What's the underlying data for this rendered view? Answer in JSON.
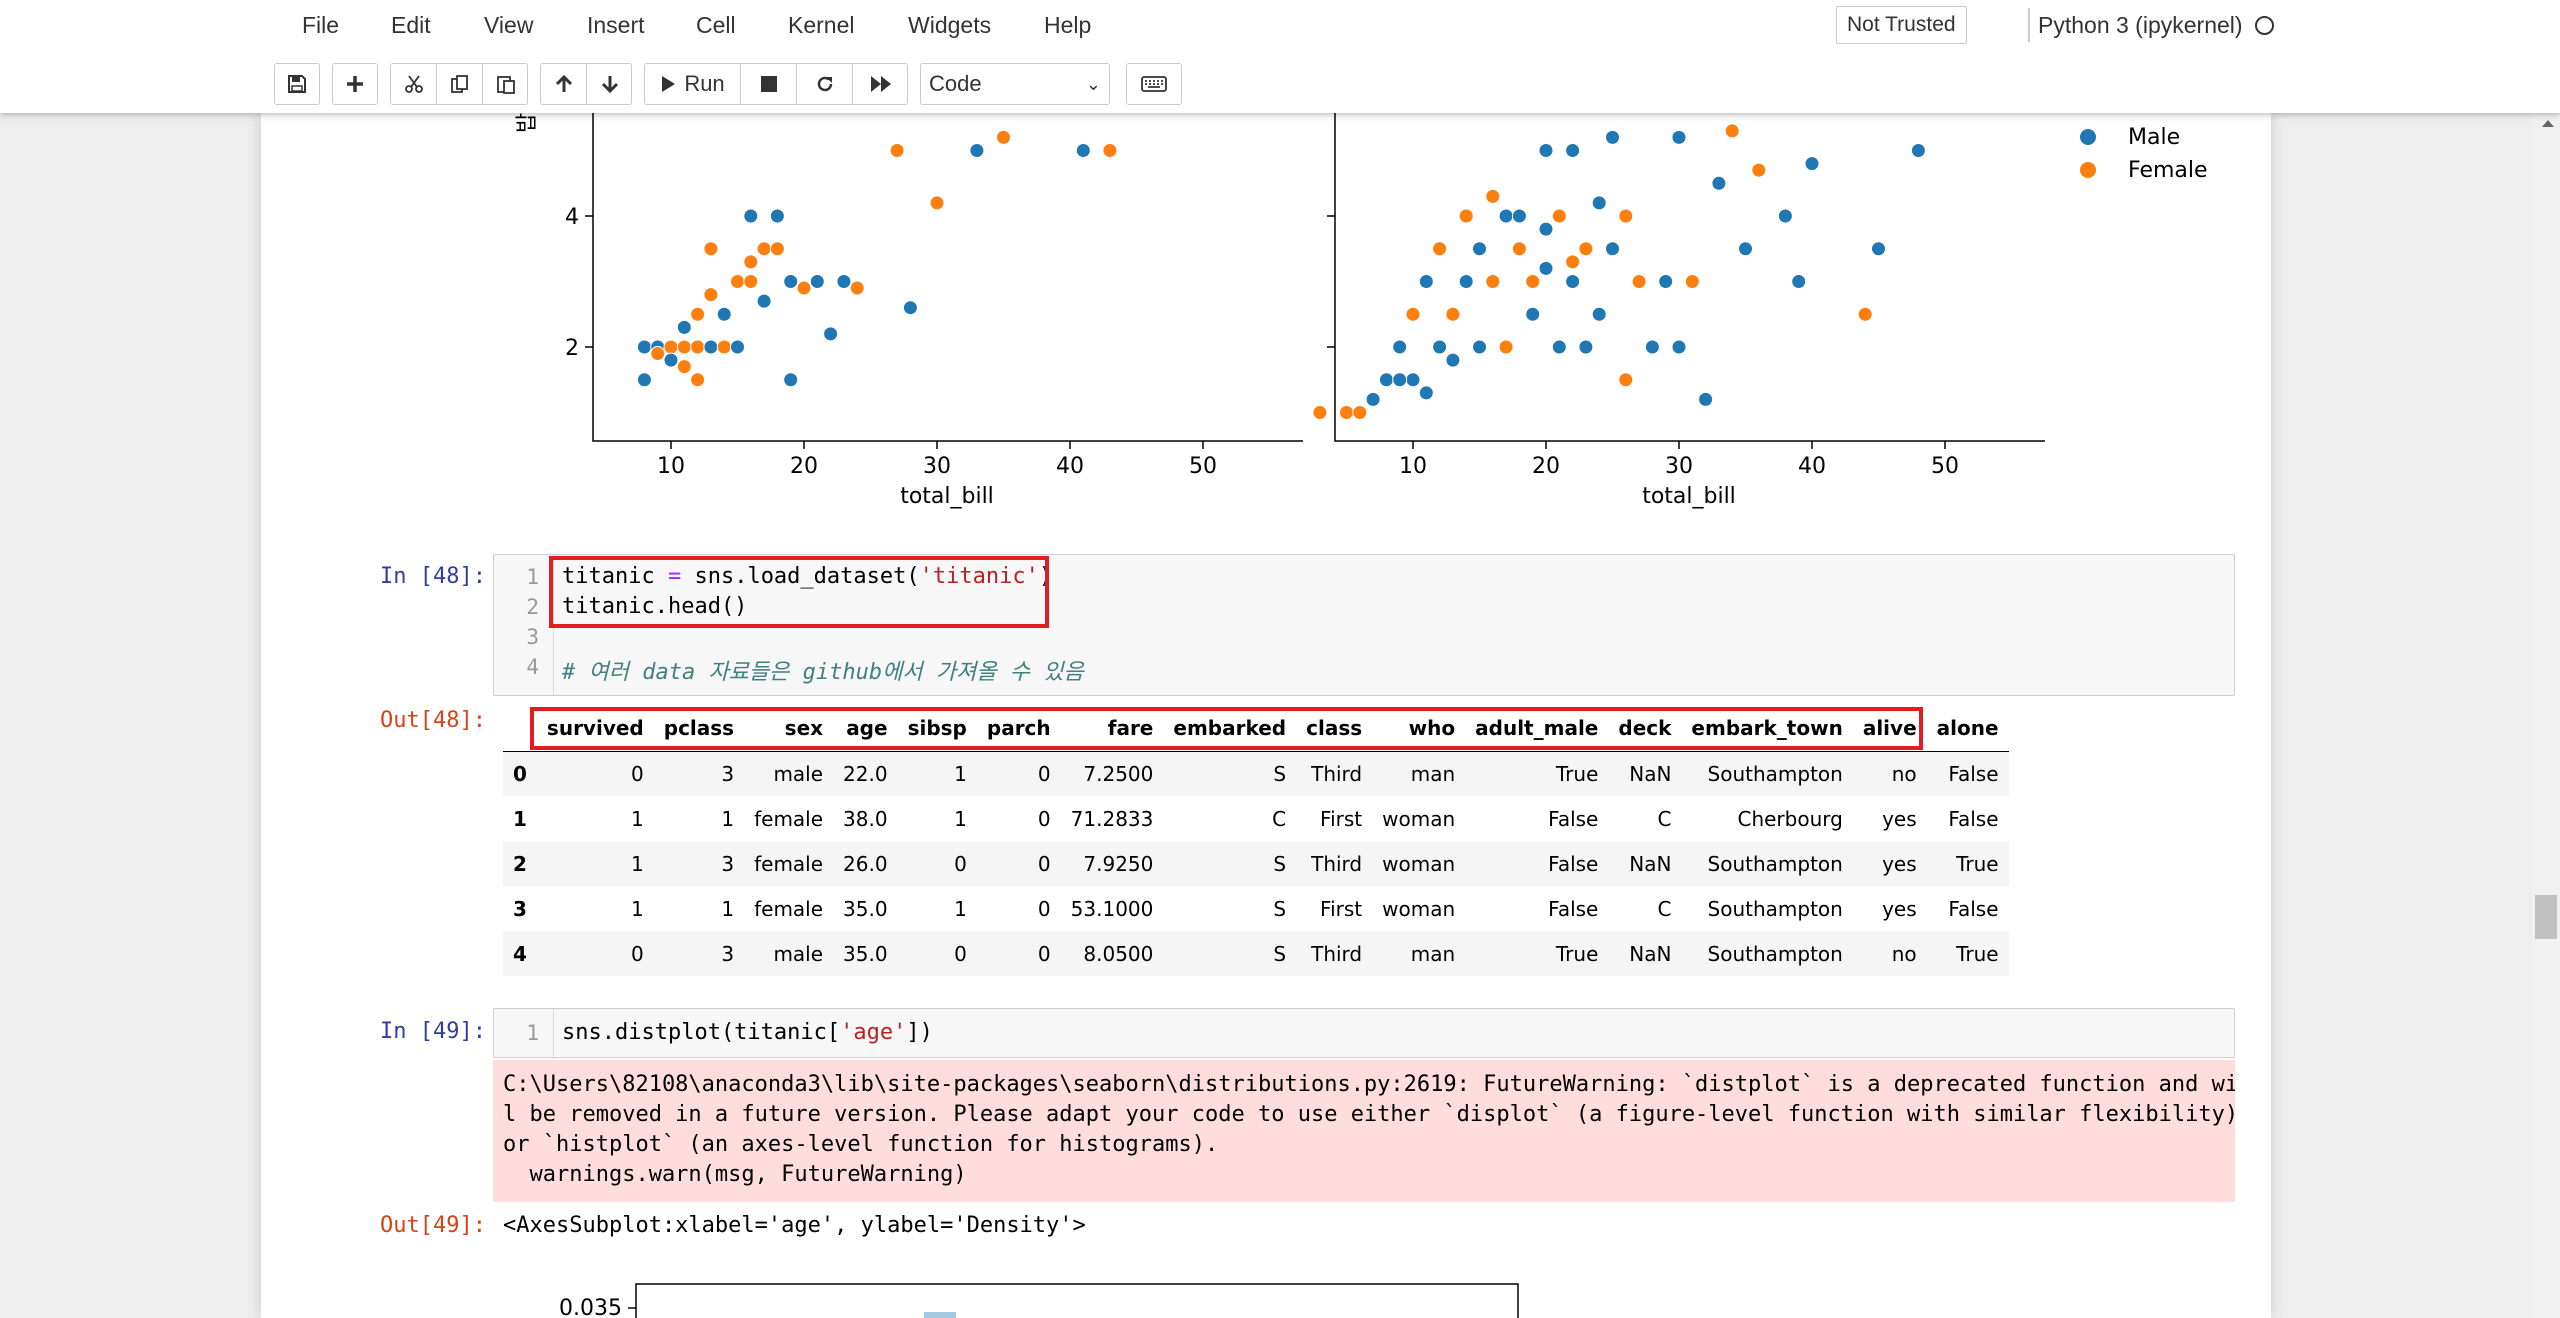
{
  "menu": [
    "File",
    "Edit",
    "View",
    "Insert",
    "Cell",
    "Kernel",
    "Widgets",
    "Help"
  ],
  "trust_label": "Not Trusted",
  "kernel_label": "Python 3 (ipykernel)",
  "toolbar": {
    "run_label": "Run",
    "cell_type": "Code",
    "icons": [
      "save-icon",
      "plus-icon",
      "cut-icon",
      "copy-icon",
      "paste-icon",
      "arrow-up-icon",
      "arrow-down-icon",
      "play-icon",
      "stop-icon",
      "restart-icon",
      "fast-forward-icon",
      "keyboard-icon"
    ]
  },
  "scatter": {
    "y_ticks": [
      "2",
      "4"
    ],
    "x_ticks": [
      "10",
      "20",
      "30",
      "40",
      "50"
    ],
    "left_xlabel": "total_bill",
    "right_xlabel": "total_bill",
    "legend": [
      {
        "label": "Male",
        "color": "#1f77b4"
      },
      {
        "label": "Female",
        "color": "#ff7f0e"
      }
    ]
  },
  "cell48": {
    "prompt_in": "In [48]:",
    "prompt_out": "Out[48]:",
    "line_numbers": [
      "1",
      "2",
      "3",
      "4"
    ],
    "line1_a": "titanic ",
    "line1_op": "=",
    "line1_b": " sns.load_dataset(",
    "line1_str": "'titanic'",
    "line1_c": ")",
    "line2": "titanic.head()",
    "line4_comment": "# 여러 data 자료들은 github에서 가져올 수 있음"
  },
  "titanic_table": {
    "columns": [
      "",
      "survived",
      "pclass",
      "sex",
      "age",
      "sibsp",
      "parch",
      "fare",
      "embarked",
      "class",
      "who",
      "adult_male",
      "deck",
      "embark_town",
      "alive",
      "alone"
    ],
    "rows": [
      [
        "0",
        "0",
        "3",
        "male",
        "22.0",
        "1",
        "0",
        "7.2500",
        "S",
        "Third",
        "man",
        "True",
        "NaN",
        "Southampton",
        "no",
        "False"
      ],
      [
        "1",
        "1",
        "1",
        "female",
        "38.0",
        "1",
        "0",
        "71.2833",
        "C",
        "First",
        "woman",
        "False",
        "C",
        "Cherbourg",
        "yes",
        "False"
      ],
      [
        "2",
        "1",
        "3",
        "female",
        "26.0",
        "0",
        "0",
        "7.9250",
        "S",
        "Third",
        "woman",
        "False",
        "NaN",
        "Southampton",
        "yes",
        "True"
      ],
      [
        "3",
        "1",
        "1",
        "female",
        "35.0",
        "1",
        "0",
        "53.1000",
        "S",
        "First",
        "woman",
        "False",
        "C",
        "Southampton",
        "yes",
        "False"
      ],
      [
        "4",
        "0",
        "3",
        "male",
        "35.0",
        "0",
        "0",
        "8.0500",
        "S",
        "Third",
        "man",
        "True",
        "NaN",
        "Southampton",
        "no",
        "True"
      ]
    ]
  },
  "cell49": {
    "prompt_in": "In [49]:",
    "prompt_out": "Out[49]:",
    "line_number": "1",
    "code_a": "sns.distplot(titanic[",
    "code_str": "'age'",
    "code_b": "])",
    "stderr": "C:\\Users\\82108\\anaconda3\\lib\\site-packages\\seaborn\\distributions.py:2619: FutureWarning: `distplot` is a deprecated function and wil\nl be removed in a future version. Please adapt your code to use either `displot` (a figure-level function with similar flexibility)\nor `histplot` (an axes-level function for histograms).\n  warnings.warn(msg, FutureWarning)",
    "output": "<AxesSubplot:xlabel='age', ylabel='Density'>"
  },
  "bottom_plot": {
    "y_tick": "0.035"
  }
}
